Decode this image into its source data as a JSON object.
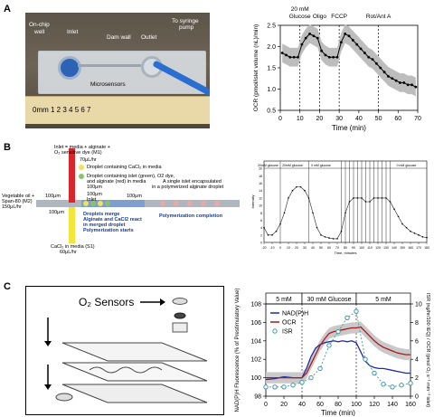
{
  "panels": {
    "a": "A",
    "b": "B",
    "c": "C"
  },
  "panel_a": {
    "photo_labels": {
      "onchip": "On-chip",
      "well": "well",
      "inlet": "Inlet",
      "dam": "Dam wall",
      "outlet": "Outlet",
      "syringe1": "To syringe",
      "syringe2": "pump",
      "micro": "Microsensors",
      "ruler": "0mm 1  2  3  4  5  6  7"
    }
  },
  "panel_b": {
    "labels": {
      "inlet_top": "Inlet = media + alginate +",
      "inlet_top2": "O₂ sensitive dye (M1)",
      "flow1": "70μL/hr",
      "oil1": "Vegetable oil +",
      "oil2": "Span-80 (M2)",
      "oil3": "150μL/hr",
      "d100a": "100μm",
      "d100b": "100μm",
      "d100c": "100μm",
      "d100d": "100μm",
      "d100e": "100μm",
      "inlet": "Inlet",
      "legend1": "Droplet containing CaCl₂ in media",
      "legend2": "Droplet containing islet (green), O2 dye,",
      "legend2b": "and alginate (red) in media",
      "single1": "A single islet encapsulated",
      "single2": "in a polymerized alginate droplet",
      "merge1": "Droplets merge",
      "merge2": "Alginate and CaCl2 react",
      "merge3": "in merged droplet",
      "merge4": "Polymerization starts",
      "poly": "Polymerization completion",
      "cacl1": "CaCl₂ in media (S1)",
      "cacl2": "60μL/hr"
    }
  },
  "panel_c": {
    "title": "O₂ Sensors"
  },
  "chart_data": [
    {
      "id": "chart-a",
      "type": "line",
      "xlabel": "Time (min)",
      "ylabel": "OCR (pmol/islet volume (nL)/min)",
      "xlim": [
        0,
        70
      ],
      "ylim": [
        0.5,
        2.5
      ],
      "xticks": [
        0,
        10,
        20,
        30,
        40,
        50,
        60,
        70
      ],
      "yticks": [
        0.5,
        1.0,
        1.5,
        2.0,
        2.5
      ],
      "events": [
        {
          "x": 10,
          "label": "20 mM",
          "label2": "Glucose"
        },
        {
          "x": 20,
          "label": "Oligo",
          "label2": ""
        },
        {
          "x": 30,
          "label": "FCCP",
          "label2": ""
        },
        {
          "x": 50,
          "label": "Rot/Ant A",
          "label2": ""
        }
      ],
      "x": [
        1,
        3,
        5,
        7,
        9,
        11,
        13,
        15,
        17,
        19,
        21,
        23,
        25,
        27,
        29,
        31,
        33,
        35,
        37,
        39,
        41,
        43,
        45,
        47,
        49,
        51,
        53,
        55,
        57,
        59,
        61,
        63,
        65,
        67,
        69
      ],
      "y": [
        1.85,
        1.8,
        1.75,
        1.75,
        1.75,
        2.05,
        2.2,
        2.3,
        2.25,
        2.2,
        1.9,
        1.8,
        1.75,
        1.75,
        1.75,
        2.1,
        2.3,
        2.25,
        2.15,
        2.05,
        1.95,
        1.85,
        1.75,
        1.7,
        1.6,
        1.5,
        1.4,
        1.3,
        1.25,
        1.2,
        1.15,
        1.15,
        1.1,
        1.1,
        1.05
      ],
      "err": 0.22
    },
    {
      "id": "chart-b",
      "type": "line",
      "xlabel": "Time, minutes",
      "ylabel": "Intensity",
      "xlim": [
        -20,
        180
      ],
      "ylim": [
        0,
        22
      ],
      "xticks": [
        -20,
        -10,
        0,
        10,
        20,
        30,
        40,
        50,
        60,
        70,
        80,
        90,
        100,
        110,
        120,
        130,
        140,
        150,
        160,
        170,
        180
      ],
      "yticks": [
        0,
        2,
        4,
        6,
        8,
        10,
        12,
        14,
        16,
        18,
        20
      ],
      "top_labels": [
        "20mM glucose",
        "20mM glucose",
        "0 mM glucose",
        "",
        "",
        "",
        "",
        "",
        "",
        "",
        "",
        "",
        "",
        "",
        "",
        "0 mM glucose"
      ],
      "vlines": [
        0,
        35,
        75,
        80,
        85,
        90,
        95,
        100,
        105,
        110,
        115,
        120,
        125,
        130,
        135
      ],
      "x": [
        -20,
        -15,
        -10,
        -5,
        0,
        5,
        10,
        15,
        20,
        25,
        30,
        35,
        40,
        45,
        50,
        55,
        60,
        65,
        70,
        75,
        80,
        85,
        90,
        95,
        100,
        105,
        110,
        115,
        120,
        125,
        130,
        135,
        140,
        145,
        150,
        155,
        160,
        165,
        170,
        175,
        180
      ],
      "y": [
        4,
        2,
        2,
        3,
        5,
        8,
        12,
        14,
        15,
        15,
        14,
        12,
        8,
        4,
        2,
        1.5,
        1.2,
        1,
        1,
        3,
        8,
        11,
        12,
        12,
        12,
        11,
        11,
        12,
        12,
        12,
        12,
        11,
        9,
        7,
        5,
        4,
        3,
        2.5,
        2,
        1.5,
        1.3
      ]
    },
    {
      "id": "chart-c",
      "type": "line",
      "xlabel": "Time  (min)",
      "ylabel_left": "NAD(P)H Fluorescence (% of Prestimulatory Value)",
      "ylabel_right": "ISR (ng/hr/100 IEQ) / OCR (pmol O₂ s⁻¹ mm⁻³ islet)",
      "xlim": [
        0,
        160
      ],
      "ylim": [
        98,
        108
      ],
      "xticks": [
        0,
        20,
        40,
        60,
        80,
        100,
        120,
        140,
        160
      ],
      "yticks_left": [
        98,
        100,
        102,
        104,
        106,
        108
      ],
      "yticks_right": [
        0,
        2,
        4,
        6,
        8,
        10
      ],
      "segments": [
        {
          "label": "5 mM",
          "x0": 0,
          "x1": 40
        },
        {
          "label": "30 mM Glucose",
          "x0": 40,
          "x1": 100
        },
        {
          "label": "5 mM",
          "x0": 100,
          "x1": 160
        }
      ],
      "series": [
        {
          "name": "NAD(P)H",
          "color": "#1f2aa8",
          "x": [
            0,
            10,
            20,
            30,
            40,
            45,
            50,
            55,
            60,
            65,
            70,
            75,
            80,
            85,
            90,
            95,
            100,
            105,
            110,
            115,
            120,
            125,
            130,
            135,
            140,
            145,
            150,
            155,
            160
          ],
          "y": [
            99.8,
            99.9,
            100.1,
            100,
            100,
            101,
            102.3,
            103.2,
            103.6,
            103.8,
            103.9,
            104,
            103.9,
            104,
            103.9,
            104,
            103.8,
            102.8,
            101.8,
            101.3,
            101.1,
            101,
            101,
            100.9,
            100.8,
            100.7,
            100.6,
            100.5,
            100.5
          ]
        },
        {
          "name": "OCR",
          "color": "#aa1a1a",
          "x": [
            0,
            10,
            20,
            30,
            40,
            45,
            50,
            55,
            60,
            65,
            70,
            75,
            80,
            85,
            90,
            95,
            100,
            105,
            110,
            115,
            120,
            125,
            130,
            135,
            140,
            145,
            150,
            155,
            160
          ],
          "y": [
            100,
            100,
            100,
            100,
            100,
            100.5,
            101.5,
            102.5,
            103.5,
            104.2,
            104.8,
            105,
            105.1,
            105.2,
            105.3,
            105.4,
            105.4,
            105.5,
            105,
            104.5,
            104,
            103.6,
            103.3,
            103.1,
            102.9,
            102.7,
            102.6,
            102.5,
            102.5
          ]
        },
        {
          "name": "ISR",
          "color": "#3a9aa0",
          "x": [
            0,
            10,
            20,
            30,
            40,
            50,
            60,
            70,
            80,
            90,
            100,
            110,
            120,
            130,
            140,
            150,
            160
          ],
          "y": [
            99,
            99,
            99,
            99.2,
            99.5,
            100,
            101,
            103.5,
            105,
            106.5,
            107.2,
            102,
            100.5,
            99.3,
            99,
            99.2,
            99.4
          ]
        }
      ]
    }
  ]
}
